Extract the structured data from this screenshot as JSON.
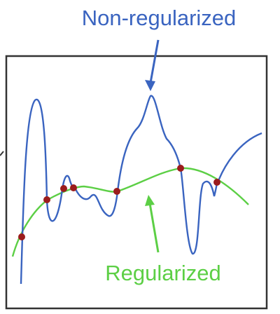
{
  "labels": {
    "non_regularized": "Non-regularized",
    "regularized": "Regularized"
  },
  "colors": {
    "non_regularized": "#3a64c0",
    "regularized": "#5ccf45",
    "data_point": "#9b1c1c",
    "frame": "#333333",
    "background": "#ffffff"
  }
}
